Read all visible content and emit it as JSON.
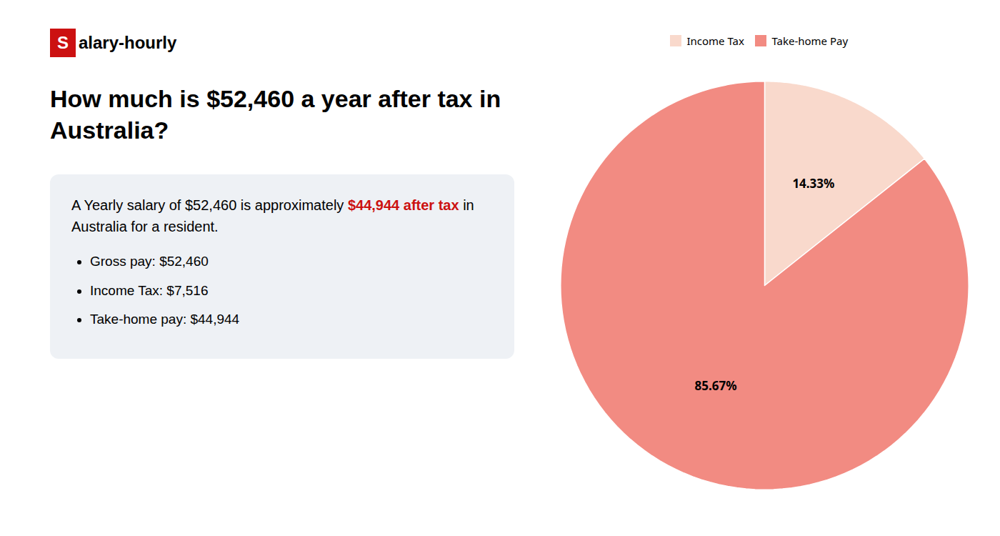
{
  "chart_data": {
    "type": "pie",
    "title": "How much is $52,460 a year after tax in\nAustralia?",
    "categories": [
      "Income Tax",
      "Take-home Pay"
    ],
    "values": [
      14.33,
      85.67
    ],
    "value_labels": [
      "14.33%",
      "85.67%"
    ],
    "colors": [
      "#f9d9cc",
      "#f28b82"
    ],
    "data_labels": true,
    "legend": "top",
    "annotations": [
      {
        "text": "S",
        "color": "#cc1111"
      },
      {
        "text": "alary-hourly"
      },
      {
        "text": "A Yearly salary of $52,460 is approximately "
      },
      {
        "text": "$44,944 after tax",
        "color": "#cc1111"
      },
      {
        "text": " in"
      },
      {
        "text": "Australia for a resident."
      },
      {
        "text": "Gross pay: $52,460"
      },
      {
        "text": "Income Tax: $7,516"
      },
      {
        "text": "Take-home pay: $44,944"
      }
    ]
  }
}
